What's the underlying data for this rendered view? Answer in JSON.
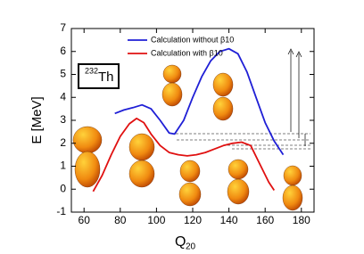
{
  "chart_data": {
    "type": "line",
    "x_label": {
      "text": "Q",
      "subscript": "20"
    },
    "y_label": "E [MeV]",
    "nucleus_label": {
      "mass": "232",
      "symbol": "Th"
    },
    "xlim": [
      53,
      187
    ],
    "ylim": [
      -1,
      7
    ],
    "xticks": [
      60,
      80,
      100,
      120,
      140,
      160,
      180
    ],
    "yticks": [
      -1,
      0,
      1,
      2,
      3,
      4,
      5,
      6,
      7
    ],
    "series": [
      {
        "name": "Calculation without β10",
        "color": "#1f1fd6",
        "x": [
          77,
          82,
          87,
          92,
          97,
          102,
          107,
          110,
          115,
          120,
          125,
          130,
          135,
          140,
          145,
          150,
          155,
          160,
          165,
          170
        ],
        "values": [
          3.3,
          3.45,
          3.55,
          3.67,
          3.5,
          3.0,
          2.45,
          2.4,
          3.0,
          4.0,
          4.9,
          5.6,
          6.0,
          6.12,
          5.9,
          5.1,
          4.0,
          2.9,
          2.1,
          1.5
        ]
      },
      {
        "name": "Calculation with β10",
        "color": "#e01010",
        "x": [
          65,
          70,
          75,
          80,
          85,
          89,
          93,
          97,
          102,
          107,
          112,
          117,
          122,
          127,
          132,
          137,
          142,
          147,
          152,
          157,
          162,
          165
        ],
        "values": [
          -0.1,
          0.6,
          1.5,
          2.3,
          2.85,
          3.08,
          2.9,
          2.4,
          1.9,
          1.6,
          1.5,
          1.45,
          1.5,
          1.6,
          1.75,
          1.9,
          2.0,
          2.05,
          1.9,
          1.1,
          0.3,
          -0.05
        ]
      }
    ]
  }
}
